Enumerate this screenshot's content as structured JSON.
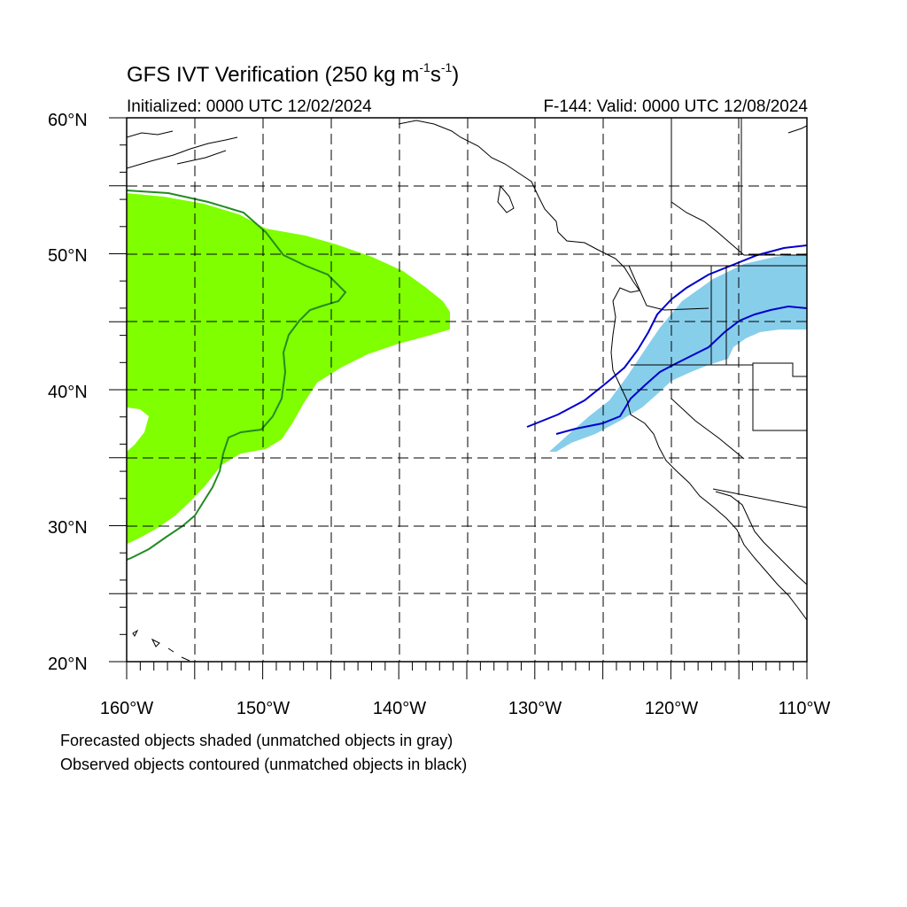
{
  "header": {
    "title_prefix": "GFS IVT Verification (250 kg m",
    "title_exp1": "-1",
    "title_mid": "s",
    "title_exp2": "-1",
    "title_suffix": ")",
    "initialized": "Initialized: 0000 UTC 12/02/2024",
    "valid": "F-144: Valid: 0000 UTC 12/08/2024"
  },
  "axes": {
    "lat_labels": [
      "60°N",
      "50°N",
      "40°N",
      "30°N",
      "20°N"
    ],
    "lon_labels": [
      "160°W",
      "150°W",
      "140°W",
      "130°W",
      "120°W",
      "110°W"
    ],
    "lat_range": [
      20,
      60
    ],
    "lon_range": [
      -160,
      -110
    ]
  },
  "colors": {
    "forecast_object_1": "#7fff00",
    "forecast_object_2": "#87ceeb",
    "observed_contour_1": "#228b22",
    "observed_contour_2": "#0000cd",
    "coastline": "#000000"
  },
  "legend": {
    "line1": "Forecasted objects shaded (unmatched objects in gray)",
    "line2": "Observed objects contoured (unmatched objects in black)"
  }
}
